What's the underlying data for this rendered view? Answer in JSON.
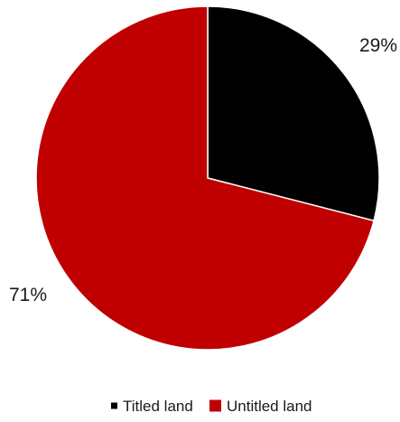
{
  "chart_data": {
    "type": "pie",
    "title": "",
    "slices": [
      {
        "label": "Titled land",
        "value": 29,
        "display": "29%",
        "color": "#000000"
      },
      {
        "label": "Untitled land",
        "value": 71,
        "display": "71%",
        "color": "#c00000"
      }
    ],
    "start_angle_deg": 0,
    "direction": "clockwise",
    "legend": {
      "placement": "bottom",
      "items": [
        "Titled land",
        "Untitled land"
      ]
    }
  }
}
